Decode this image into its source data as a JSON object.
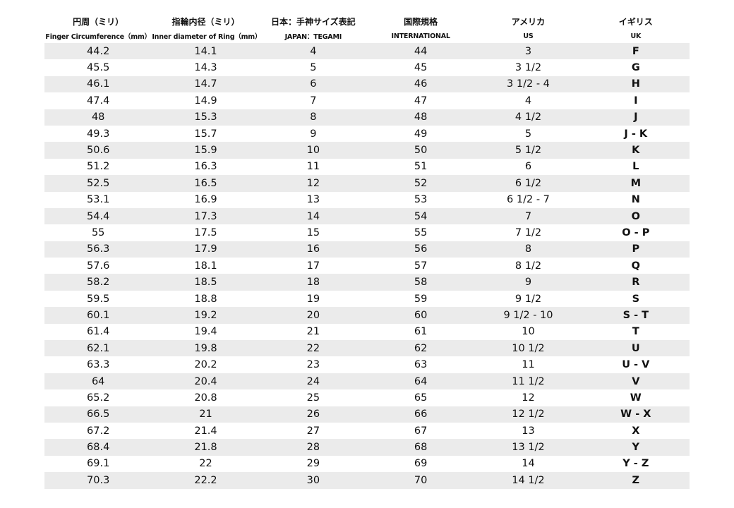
{
  "header": {
    "columns": [
      {
        "ja": "円周（ミリ）",
        "en": "Finger Circumference（mm）"
      },
      {
        "ja": "指輪内径（ミリ）",
        "en": "Inner diameter of Ring（mm）"
      },
      {
        "ja": "日本：手神サイズ表記",
        "en": "JAPAN：TEGAMI"
      },
      {
        "ja": "国際規格",
        "en": "INTERNATIONAL"
      },
      {
        "ja": "アメリカ",
        "en": "US"
      },
      {
        "ja": "イギリス",
        "en": "UK"
      }
    ]
  },
  "table": {
    "rows": [
      [
        "44.2",
        "14.1",
        "4",
        "44",
        "3",
        "F"
      ],
      [
        "45.5",
        "14.3",
        "5",
        "45",
        "3 1/2",
        "G"
      ],
      [
        "46.1",
        "14.7",
        "6",
        "46",
        "3 1/2 - 4",
        "H"
      ],
      [
        "47.4",
        "14.9",
        "7",
        "47",
        "4",
        "I"
      ],
      [
        "48",
        "15.3",
        "8",
        "48",
        "4 1/2",
        "J"
      ],
      [
        "49.3",
        "15.7",
        "9",
        "49",
        "5",
        "J - K"
      ],
      [
        "50.6",
        "15.9",
        "10",
        "50",
        "5 1/2",
        "K"
      ],
      [
        "51.2",
        "16.3",
        "11",
        "51",
        "6",
        "L"
      ],
      [
        "52.5",
        "16.5",
        "12",
        "52",
        "6 1/2",
        "M"
      ],
      [
        "53.1",
        "16.9",
        "13",
        "53",
        "6 1/2 - 7",
        "N"
      ],
      [
        "54.4",
        "17.3",
        "14",
        "54",
        "7",
        "O"
      ],
      [
        "55",
        "17.5",
        "15",
        "55",
        "7 1/2",
        "O - P"
      ],
      [
        "56.3",
        "17.9",
        "16",
        "56",
        "8",
        "P"
      ],
      [
        "57.6",
        "18.1",
        "17",
        "57",
        "8 1/2",
        "Q"
      ],
      [
        "58.2",
        "18.5",
        "18",
        "58",
        "9",
        "R"
      ],
      [
        "59.5",
        "18.8",
        "19",
        "59",
        "9 1/2",
        "S"
      ],
      [
        "60.1",
        "19.2",
        "20",
        "60",
        "9 1/2 - 10",
        "S - T"
      ],
      [
        "61.4",
        "19.4",
        "21",
        "61",
        "10",
        "T"
      ],
      [
        "62.1",
        "19.8",
        "22",
        "62",
        "10 1/2",
        "U"
      ],
      [
        "63.3",
        "20.2",
        "23",
        "63",
        "11",
        "U - V"
      ],
      [
        "64",
        "20.4",
        "24",
        "64",
        "11 1/2",
        "V"
      ],
      [
        "65.2",
        "20.8",
        "25",
        "65",
        "12",
        "W"
      ],
      [
        "66.5",
        "21",
        "26",
        "66",
        "12 1/2",
        "W - X"
      ],
      [
        "67.2",
        "21.4",
        "27",
        "67",
        "13",
        "X"
      ],
      [
        "68.4",
        "21.8",
        "28",
        "68",
        "13 1/2",
        "Y"
      ],
      [
        "69.1",
        "22",
        "29",
        "69",
        "14",
        "Y - Z"
      ],
      [
        "70.3",
        "22.2",
        "30",
        "70",
        "14 1/2",
        "Z"
      ]
    ]
  }
}
